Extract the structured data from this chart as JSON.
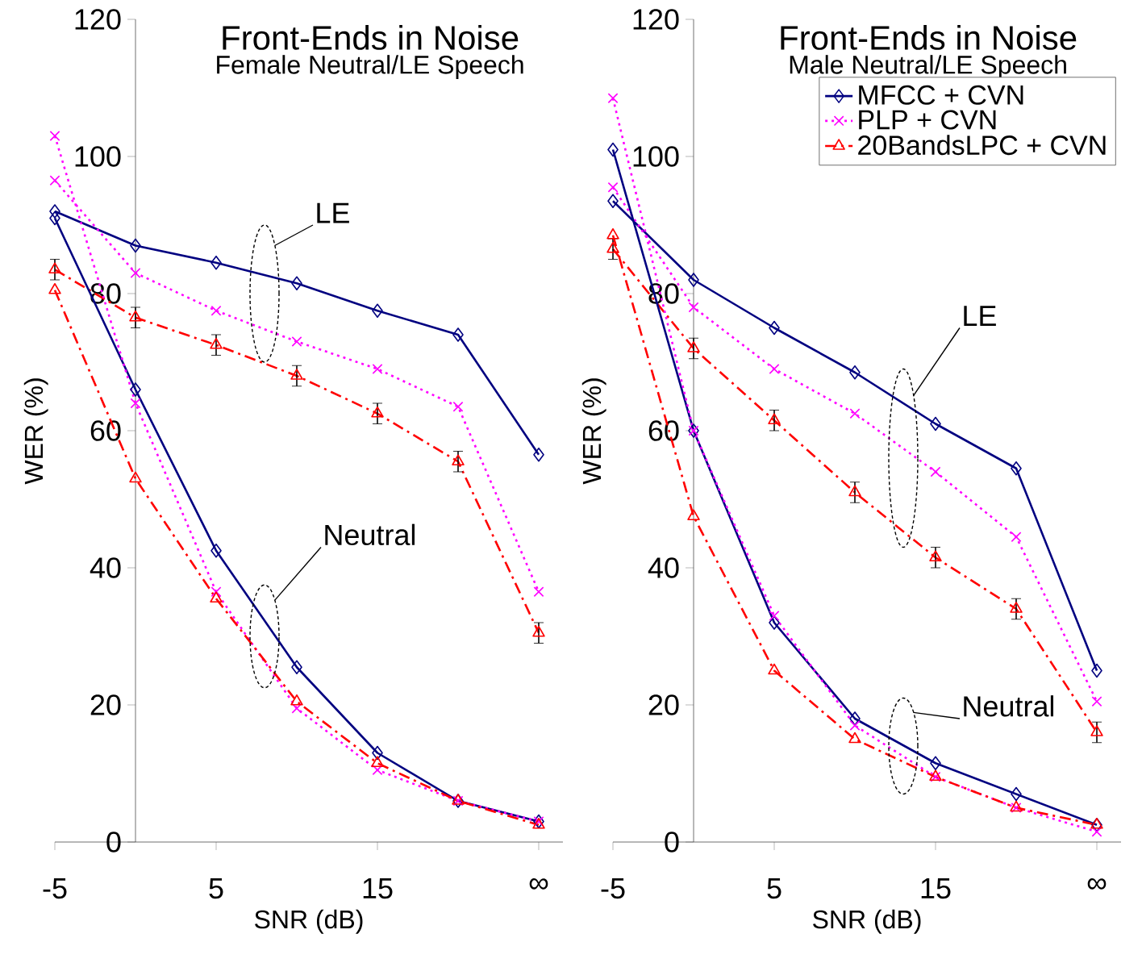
{
  "chart_data": [
    {
      "type": "line",
      "title": "Front-Ends in Noise",
      "subtitle": "Female Neutral/LE Speech",
      "xlabel": "SNR (dB)",
      "ylabel": "WER (%)",
      "categories": [
        "-5",
        null,
        "5",
        null,
        "15",
        null,
        "∞"
      ],
      "ylim": [
        0,
        120
      ],
      "yticks": [
        0,
        20,
        40,
        60,
        80,
        100,
        120
      ],
      "grid": false,
      "legend": false,
      "annotations": [
        "LE",
        "Neutral"
      ],
      "series": [
        {
          "color": "#000080",
          "marker": "diamond",
          "line_style": "solid",
          "values": [
            92,
            87,
            84.5,
            81.5,
            77.5,
            74,
            56.5
          ]
        },
        {
          "color": "#ff00ff",
          "marker": "cross",
          "line_style": "dotted",
          "values": [
            96.5,
            83,
            77.5,
            73,
            69,
            63.5,
            36.5
          ]
        },
        {
          "color": "#ff0000",
          "marker": "triangle",
          "line_style": "dashed",
          "values": [
            83.5,
            76.5,
            72.5,
            68,
            62.5,
            55.5,
            30.5
          ],
          "errors": [
            1.5,
            1.5,
            1.5,
            1.5,
            1.5,
            1.5,
            1.5
          ]
        },
        {
          "color": "#000080",
          "marker": "diamond",
          "line_style": "solid",
          "values": [
            91,
            66,
            42.5,
            25.5,
            13,
            6,
            3
          ]
        },
        {
          "color": "#ff00ff",
          "marker": "cross",
          "line_style": "dotted",
          "values": [
            103,
            64,
            36.5,
            19.5,
            10.5,
            6,
            3
          ]
        },
        {
          "color": "#ff0000",
          "marker": "triangle",
          "line_style": "dashed",
          "values": [
            80.5,
            53,
            35.5,
            20.5,
            11.5,
            6,
            2.5
          ]
        }
      ]
    },
    {
      "type": "line",
      "title": "Front-Ends in Noise",
      "subtitle": "Male Neutral/LE Speech",
      "xlabel": "SNR (dB)",
      "ylabel": "WER (%)",
      "categories": [
        "-5",
        null,
        "5",
        null,
        "15",
        null,
        "∞"
      ],
      "ylim": [
        0,
        120
      ],
      "yticks": [
        0,
        20,
        40,
        60,
        80,
        100,
        120
      ],
      "grid": false,
      "legend": "top right",
      "annotations": [
        "LE",
        "Neutral"
      ],
      "series": [
        {
          "name": "MFCC + CVN",
          "color": "#000080",
          "marker": "diamond",
          "line_style": "solid",
          "values": [
            93.5,
            82,
            75,
            68.5,
            61,
            54.5,
            25
          ]
        },
        {
          "name": "PLP + CVN",
          "color": "#ff00ff",
          "marker": "cross",
          "line_style": "dotted",
          "values": [
            95.5,
            78,
            69,
            62.5,
            54,
            44.5,
            20.5
          ]
        },
        {
          "name": "20BandsLPC + CVN",
          "color": "#ff0000",
          "marker": "triangle",
          "line_style": "dashed",
          "values": [
            86.5,
            72,
            61.5,
            51,
            41.5,
            34,
            16
          ],
          "errors": [
            1.5,
            1.5,
            1.5,
            1.5,
            1.5,
            1.5,
            1.5
          ]
        },
        {
          "color": "#000080",
          "marker": "diamond",
          "line_style": "solid",
          "values": [
            101,
            60,
            32,
            18,
            11.5,
            7,
            2.5
          ]
        },
        {
          "color": "#ff00ff",
          "marker": "cross",
          "line_style": "dotted",
          "values": [
            108.5,
            60,
            33,
            17,
            9.5,
            5,
            1.5
          ]
        },
        {
          "color": "#ff0000",
          "marker": "triangle",
          "line_style": "dashed",
          "values": [
            88.5,
            47.5,
            25,
            15,
            9.5,
            5,
            2.5
          ]
        }
      ]
    }
  ]
}
